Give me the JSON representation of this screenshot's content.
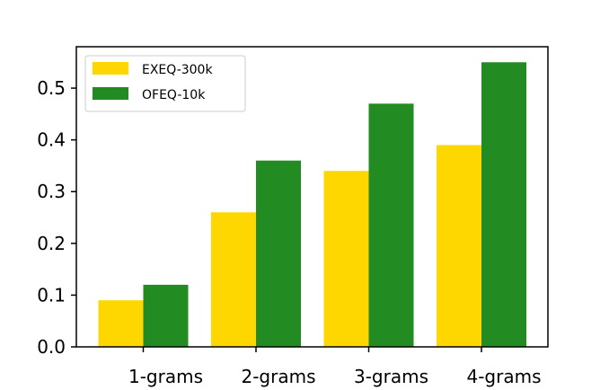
{
  "chart_data": {
    "type": "bar",
    "categories": [
      "1-grams",
      "2-grams",
      "3-grams",
      "4-grams"
    ],
    "series": [
      {
        "name": "EXEQ-300k",
        "values": [
          0.09,
          0.26,
          0.34,
          0.39
        ],
        "color": "#FFD700"
      },
      {
        "name": "OFEQ-10k",
        "values": [
          0.12,
          0.36,
          0.47,
          0.55
        ],
        "color": "#228B22"
      }
    ],
    "ylim": [
      0,
      0.58
    ],
    "yticks": [
      0.0,
      0.1,
      0.2,
      0.3,
      0.4,
      0.5
    ],
    "ytick_labels": [
      "0.0",
      "0.1",
      "0.2",
      "0.3",
      "0.4",
      "0.5"
    ],
    "grid": false,
    "legend_position": "top-left"
  }
}
